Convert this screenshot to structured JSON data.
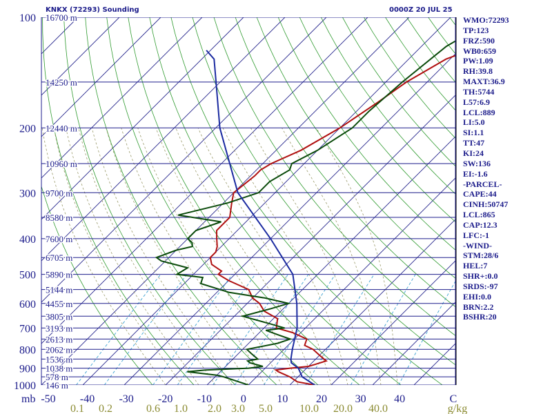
{
  "header": {
    "station": "KNKX (72293) Sounding",
    "time": "0000Z 20 JUL 25"
  },
  "indices": [
    "WMO:72293",
    "TP:123",
    "FRZ:590",
    "WB0:659",
    "PW:1.09",
    "RH:39.8",
    "MAXT:36.9",
    "TH:5744",
    "L57:6.9",
    "LCL:889",
    "LI:5.0",
    "SI:1.1",
    "TT:47",
    "KI:24",
    "SW:136",
    "EI:-1.6",
    "-PARCEL-",
    "CAPE:44",
    "CINH:50747",
    "LCL:865",
    "CAP:12.3",
    "LFC:-1",
    "-WIND-",
    "STM:28/6",
    "HEL:7",
    "SHR+:0.0",
    "SRDS:-97",
    "EHI:0.0",
    "BRN:2.2",
    "BSHR:20"
  ],
  "colors": {
    "isobar": "#1e1e8c",
    "isotherm": "#23238c",
    "dry_adiabat": "#2e9a2e",
    "mixing_ratio": "#3aa0d0",
    "moist_adiabat": "#9a9a6a",
    "temperature": "#b01010",
    "dewpoint": "#0a4a0a",
    "parcel": "#1a2aa0",
    "label": "#1a1a8a",
    "mixing_label": "#8a8a30"
  },
  "chart_data": {
    "type": "line",
    "title": "",
    "y_unit_label": "mb",
    "x_unit_label": "C",
    "mixing_unit_label": "g/kg",
    "pressure_ticks": [
      "100",
      "200",
      "300",
      "400",
      "500",
      "600",
      "700",
      "800",
      "900",
      "1000"
    ],
    "temperature_ticks": [
      "-50",
      "-40",
      "-30",
      "-20",
      "-10",
      "0",
      "10",
      "20",
      "30",
      "40"
    ],
    "mixing_ratio_ticks": [
      "0.1",
      "0.2",
      "0.6",
      "1.0",
      "2.0",
      "3.0",
      "5.0",
      "10.0",
      "20.0",
      "40.0"
    ],
    "height_labels": [
      {
        "p": 100,
        "label": "16700 m"
      },
      {
        "p": 150,
        "label": "14250 m"
      },
      {
        "p": 200,
        "label": "12440 m"
      },
      {
        "p": 250,
        "label": "10960 m"
      },
      {
        "p": 300,
        "label": "9700 m"
      },
      {
        "p": 350,
        "label": "8580 m"
      },
      {
        "p": 400,
        "label": "7600 m"
      },
      {
        "p": 450,
        "label": "6705 m"
      },
      {
        "p": 500,
        "label": "5890 m"
      },
      {
        "p": 550,
        "label": "5144 m"
      },
      {
        "p": 600,
        "label": "4455 m"
      },
      {
        "p": 650,
        "label": "3805 m"
      },
      {
        "p": 700,
        "label": "3193 m"
      },
      {
        "p": 750,
        "label": "2613 m"
      },
      {
        "p": 800,
        "label": "2062 m"
      },
      {
        "p": 850,
        "label": "1536 m"
      },
      {
        "p": 900,
        "label": "1038 m"
      },
      {
        "p": 950,
        "label": "578 m"
      },
      {
        "p": 1000,
        "label": "146 m"
      }
    ],
    "pressure_range": [
      100,
      1000
    ],
    "temperature_range": [
      -50,
      50
    ],
    "series": [
      {
        "points": [
          [
            100,
            -13
          ],
          [
            105,
            -18
          ],
          [
            115,
            -23
          ],
          [
            130,
            -31
          ],
          [
            150,
            -35
          ],
          [
            170,
            -37
          ],
          [
            200,
            -40
          ],
          [
            230,
            -44
          ],
          [
            250,
            -48
          ],
          [
            260,
            -49
          ],
          [
            270,
            -49
          ],
          [
            300,
            -50
          ],
          [
            320,
            -48
          ],
          [
            350,
            -45
          ],
          [
            380,
            -45
          ],
          [
            400,
            -43
          ],
          [
            420,
            -41
          ],
          [
            435,
            -40
          ],
          [
            450,
            -40
          ],
          [
            470,
            -38
          ],
          [
            490,
            -34
          ],
          [
            500,
            -34
          ],
          [
            520,
            -30
          ],
          [
            550,
            -23
          ],
          [
            580,
            -20
          ],
          [
            600,
            -17
          ],
          [
            630,
            -14
          ],
          [
            660,
            -9
          ],
          [
            700,
            -7
          ],
          [
            720,
            -2
          ],
          [
            750,
            3
          ],
          [
            780,
            4
          ],
          [
            800,
            7
          ],
          [
            830,
            10
          ],
          [
            850,
            12
          ],
          [
            860,
            13
          ],
          [
            880,
            11
          ],
          [
            890,
            10
          ],
          [
            900,
            6
          ],
          [
            910,
            3
          ],
          [
            920,
            4
          ],
          [
            950,
            8
          ],
          [
            980,
            11
          ],
          [
            1000,
            16
          ]
        ]
      },
      {
        "points": [
          [
            100,
            -29
          ],
          [
            120,
            -34
          ],
          [
            150,
            -36
          ],
          [
            180,
            -37
          ],
          [
            200,
            -37
          ],
          [
            230,
            -40
          ],
          [
            250,
            -43
          ],
          [
            260,
            -42
          ],
          [
            280,
            -44
          ],
          [
            300,
            -44
          ],
          [
            320,
            -49
          ],
          [
            345,
            -58
          ],
          [
            360,
            -46
          ],
          [
            380,
            -50
          ],
          [
            400,
            -50
          ],
          [
            410,
            -48
          ],
          [
            420,
            -47
          ],
          [
            430,
            -50
          ],
          [
            450,
            -53
          ],
          [
            460,
            -51
          ],
          [
            480,
            -43
          ],
          [
            500,
            -44
          ],
          [
            510,
            -37
          ],
          [
            530,
            -36
          ],
          [
            560,
            -27
          ],
          [
            580,
            -17
          ],
          [
            600,
            -10
          ],
          [
            620,
            -13
          ],
          [
            650,
            -18
          ],
          [
            680,
            -10
          ],
          [
            700,
            -5
          ],
          [
            710,
            -9
          ],
          [
            730,
            -5
          ],
          [
            750,
            -1
          ],
          [
            770,
            -3
          ],
          [
            800,
            -9
          ],
          [
            820,
            -7
          ],
          [
            850,
            -4
          ],
          [
            860,
            -6
          ],
          [
            870,
            -5
          ],
          [
            890,
            -1
          ],
          [
            900,
            -4
          ],
          [
            910,
            -14
          ],
          [
            920,
            -18
          ],
          [
            930,
            -14
          ],
          [
            940,
            -10
          ],
          [
            950,
            -8
          ],
          [
            1000,
            0
          ]
        ]
      },
      {
        "points": [
          [
            1000,
            16
          ],
          [
            950,
            11
          ],
          [
            900,
            8
          ],
          [
            870,
            5
          ],
          [
            850,
            4
          ],
          [
            800,
            2
          ],
          [
            700,
            -2
          ],
          [
            600,
            -8
          ],
          [
            500,
            -16
          ],
          [
            400,
            -30
          ],
          [
            300,
            -49
          ],
          [
            200,
            -69
          ],
          [
            150,
            -81
          ],
          [
            130,
            -87
          ],
          [
            123,
            -91
          ]
        ]
      }
    ]
  }
}
